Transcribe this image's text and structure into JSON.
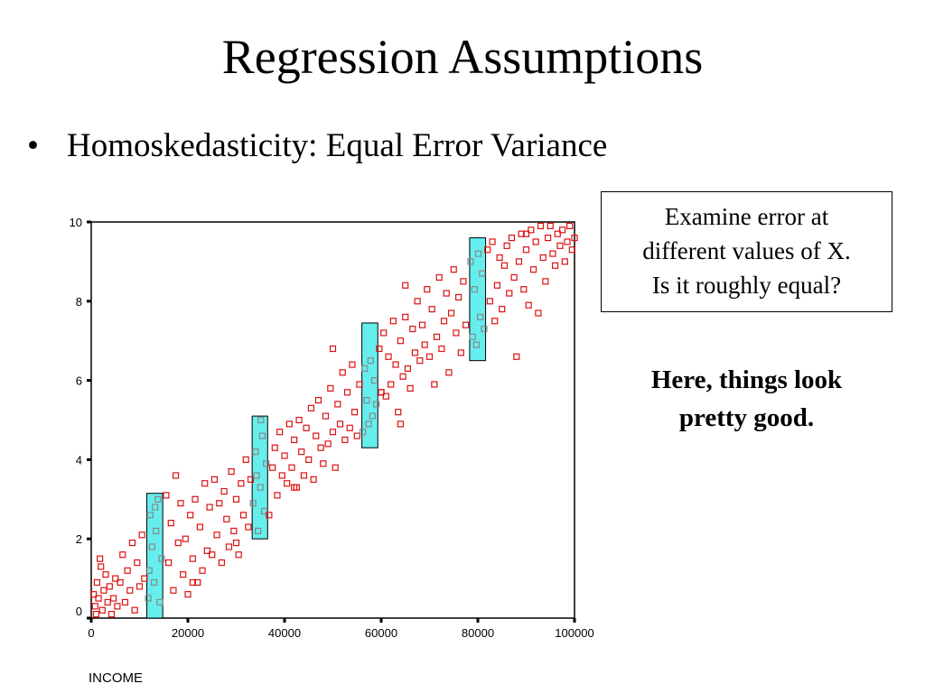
{
  "slide": {
    "title": "Regression Assumptions",
    "bullet_char": "•",
    "bullet": "Homoskedasticity:  Equal Error Variance",
    "callout_lines": [
      "Examine error at",
      "different values of X.",
      "Is it roughly equal?"
    ],
    "conclusion_lines": [
      "Here, things look",
      "pretty good."
    ]
  },
  "colors": {
    "marker": "#dd1111",
    "window_fill": "#66eeee",
    "window_marker": "#888888"
  },
  "chart_data": {
    "type": "scatter",
    "xlabel": "INCOME",
    "ylabel": "",
    "xlim": [
      0,
      100000
    ],
    "ylim": [
      0,
      10
    ],
    "x_ticks": [
      "0",
      "20000",
      "40000",
      "60000",
      "80000",
      "100000"
    ],
    "y_ticks": [
      "0",
      "2",
      "4",
      "6",
      "8",
      "10"
    ],
    "grid": false,
    "marker": "hollow-square",
    "annotations": [
      {
        "type": "highlight-window",
        "x_range": [
          11500,
          14800
        ],
        "y_range": [
          0,
          3.15
        ]
      },
      {
        "type": "highlight-window",
        "x_range": [
          33300,
          36500
        ],
        "y_range": [
          2,
          5.1
        ]
      },
      {
        "type": "highlight-window",
        "x_range": [
          56000,
          59300
        ],
        "y_range": [
          4.3,
          7.45
        ]
      },
      {
        "type": "highlight-window",
        "x_range": [
          78300,
          81600
        ],
        "y_range": [
          6.5,
          9.6
        ]
      }
    ],
    "points": [
      [
        800,
        0.3
      ],
      [
        1200,
        0.9
      ],
      [
        1500,
        0.5
      ],
      [
        1800,
        1.5
      ],
      [
        2300,
        0.2
      ],
      [
        2600,
        0.7
      ],
      [
        3000,
        1.1
      ],
      [
        3400,
        0.4
      ],
      [
        3800,
        0.8
      ],
      [
        4200,
        0.1
      ],
      [
        500,
        0.6
      ],
      [
        1000,
        0.1
      ],
      [
        2000,
        1.3
      ],
      [
        4600,
        0.5
      ],
      [
        5000,
        1.0
      ],
      [
        5400,
        0.3
      ],
      [
        6000,
        0.9
      ],
      [
        6500,
        1.6
      ],
      [
        7000,
        0.4
      ],
      [
        7500,
        1.2
      ],
      [
        8000,
        0.7
      ],
      [
        8500,
        1.9
      ],
      [
        9000,
        0.2
      ],
      [
        9500,
        1.4
      ],
      [
        10000,
        0.8
      ],
      [
        10500,
        2.1
      ],
      [
        11000,
        1.0
      ],
      [
        11800,
        0.5
      ],
      [
        12200,
        2.6
      ],
      [
        12600,
        1.8
      ],
      [
        13000,
        0.9
      ],
      [
        13400,
        2.2
      ],
      [
        13800,
        3.0
      ],
      [
        14200,
        0.4
      ],
      [
        14600,
        1.5
      ],
      [
        12000,
        1.2
      ],
      [
        13200,
        2.8
      ],
      [
        15500,
        3.1
      ],
      [
        16000,
        1.4
      ],
      [
        16500,
        2.4
      ],
      [
        17000,
        0.7
      ],
      [
        17500,
        3.6
      ],
      [
        18000,
        1.9
      ],
      [
        18500,
        2.9
      ],
      [
        19000,
        1.1
      ],
      [
        19500,
        2.0
      ],
      [
        20000,
        0.6
      ],
      [
        20500,
        2.6
      ],
      [
        21000,
        1.5
      ],
      [
        21500,
        3.0
      ],
      [
        22000,
        0.9
      ],
      [
        22500,
        2.3
      ],
      [
        23000,
        1.2
      ],
      [
        23500,
        3.4
      ],
      [
        24000,
        1.7
      ],
      [
        24500,
        2.8
      ],
      [
        25000,
        1.6
      ],
      [
        25500,
        3.5
      ],
      [
        26000,
        2.1
      ],
      [
        26500,
        2.9
      ],
      [
        27000,
        1.4
      ],
      [
        27500,
        3.2
      ],
      [
        28000,
        2.5
      ],
      [
        28500,
        1.8
      ],
      [
        29000,
        3.7
      ],
      [
        29500,
        2.2
      ],
      [
        30000,
        3.0
      ],
      [
        30500,
        1.6
      ],
      [
        31000,
        3.4
      ],
      [
        31500,
        2.6
      ],
      [
        32000,
        4.0
      ],
      [
        32500,
        2.3
      ],
      [
        33000,
        3.5
      ],
      [
        33500,
        2.9
      ],
      [
        34000,
        4.2
      ],
      [
        34500,
        2.2
      ],
      [
        35000,
        3.3
      ],
      [
        35400,
        4.6
      ],
      [
        35800,
        2.7
      ],
      [
        36200,
        3.9
      ],
      [
        34200,
        3.6
      ],
      [
        35100,
        5.0
      ],
      [
        36800,
        2.6
      ],
      [
        37500,
        3.8
      ],
      [
        38000,
        4.3
      ],
      [
        38500,
        3.1
      ],
      [
        39000,
        4.7
      ],
      [
        39500,
        3.6
      ],
      [
        40000,
        4.1
      ],
      [
        40500,
        3.4
      ],
      [
        41000,
        4.9
      ],
      [
        41500,
        3.8
      ],
      [
        42000,
        4.5
      ],
      [
        42500,
        3.3
      ],
      [
        43000,
        5.0
      ],
      [
        43500,
        4.2
      ],
      [
        44000,
        3.6
      ],
      [
        44500,
        4.8
      ],
      [
        45000,
        4.0
      ],
      [
        45500,
        5.3
      ],
      [
        46000,
        3.5
      ],
      [
        46500,
        4.6
      ],
      [
        47000,
        5.5
      ],
      [
        47500,
        4.3
      ],
      [
        48000,
        3.9
      ],
      [
        48500,
        5.1
      ],
      [
        49000,
        4.4
      ],
      [
        49500,
        5.8
      ],
      [
        50000,
        4.7
      ],
      [
        50500,
        3.8
      ],
      [
        51000,
        5.4
      ],
      [
        51500,
        4.9
      ],
      [
        52000,
        6.2
      ],
      [
        52500,
        4.5
      ],
      [
        53000,
        5.7
      ],
      [
        53500,
        4.8
      ],
      [
        54000,
        6.4
      ],
      [
        54500,
        5.2
      ],
      [
        55000,
        4.6
      ],
      [
        55500,
        5.9
      ],
      [
        56200,
        4.7
      ],
      [
        56600,
        6.3
      ],
      [
        57000,
        5.5
      ],
      [
        57400,
        4.9
      ],
      [
        57800,
        6.5
      ],
      [
        58200,
        5.1
      ],
      [
        58600,
        6.0
      ],
      [
        59000,
        5.4
      ],
      [
        59600,
        6.8
      ],
      [
        60000,
        5.7
      ],
      [
        60500,
        7.2
      ],
      [
        61000,
        5.6
      ],
      [
        61500,
        6.6
      ],
      [
        62000,
        5.9
      ],
      [
        62500,
        7.5
      ],
      [
        63000,
        6.4
      ],
      [
        63500,
        5.2
      ],
      [
        64000,
        7.0
      ],
      [
        64500,
        6.1
      ],
      [
        65000,
        7.6
      ],
      [
        65500,
        6.3
      ],
      [
        66000,
        5.8
      ],
      [
        66500,
        7.3
      ],
      [
        67000,
        6.7
      ],
      [
        67500,
        8.0
      ],
      [
        68000,
        6.5
      ],
      [
        68500,
        7.4
      ],
      [
        69000,
        6.9
      ],
      [
        69500,
        8.3
      ],
      [
        70000,
        6.6
      ],
      [
        70500,
        7.8
      ],
      [
        71000,
        5.9
      ],
      [
        71500,
        7.1
      ],
      [
        72000,
        8.6
      ],
      [
        72500,
        6.8
      ],
      [
        73000,
        7.5
      ],
      [
        73500,
        8.2
      ],
      [
        74000,
        6.2
      ],
      [
        74500,
        7.7
      ],
      [
        75000,
        8.8
      ],
      [
        75500,
        7.2
      ],
      [
        76000,
        8.1
      ],
      [
        76500,
        6.7
      ],
      [
        77000,
        8.5
      ],
      [
        77500,
        7.4
      ],
      [
        78500,
        9.0
      ],
      [
        78900,
        7.1
      ],
      [
        79300,
        8.3
      ],
      [
        79700,
        6.9
      ],
      [
        80100,
        9.2
      ],
      [
        80500,
        7.6
      ],
      [
        80900,
        8.7
      ],
      [
        81300,
        7.3
      ],
      [
        82000,
        9.3
      ],
      [
        82500,
        8.0
      ],
      [
        83000,
        9.5
      ],
      [
        83500,
        7.5
      ],
      [
        84000,
        8.4
      ],
      [
        84500,
        9.1
      ],
      [
        85000,
        7.8
      ],
      [
        85500,
        8.9
      ],
      [
        86000,
        9.4
      ],
      [
        86500,
        8.2
      ],
      [
        87000,
        9.6
      ],
      [
        87500,
        8.6
      ],
      [
        88000,
        6.6
      ],
      [
        88500,
        9.0
      ],
      [
        89000,
        9.7
      ],
      [
        89500,
        8.3
      ],
      [
        90000,
        9.3
      ],
      [
        90500,
        7.9
      ],
      [
        91000,
        9.8
      ],
      [
        91500,
        8.8
      ],
      [
        92000,
        9.5
      ],
      [
        92500,
        7.7
      ],
      [
        93000,
        9.9
      ],
      [
        93500,
        9.1
      ],
      [
        94000,
        8.5
      ],
      [
        94500,
        9.6
      ],
      [
        95000,
        9.9
      ],
      [
        95500,
        9.2
      ],
      [
        96000,
        8.9
      ],
      [
        96500,
        9.7
      ],
      [
        97000,
        9.4
      ],
      [
        97500,
        9.8
      ],
      [
        98000,
        9.0
      ],
      [
        98500,
        9.5
      ],
      [
        99000,
        9.9
      ],
      [
        99500,
        9.3
      ],
      [
        100000,
        9.6
      ],
      [
        65000,
        8.4
      ],
      [
        60000,
        5.7
      ],
      [
        50000,
        6.8
      ],
      [
        42000,
        3.3
      ],
      [
        30000,
        1.9
      ],
      [
        21000,
        0.9
      ],
      [
        64000,
        4.9
      ],
      [
        90000,
        9.7
      ]
    ]
  }
}
